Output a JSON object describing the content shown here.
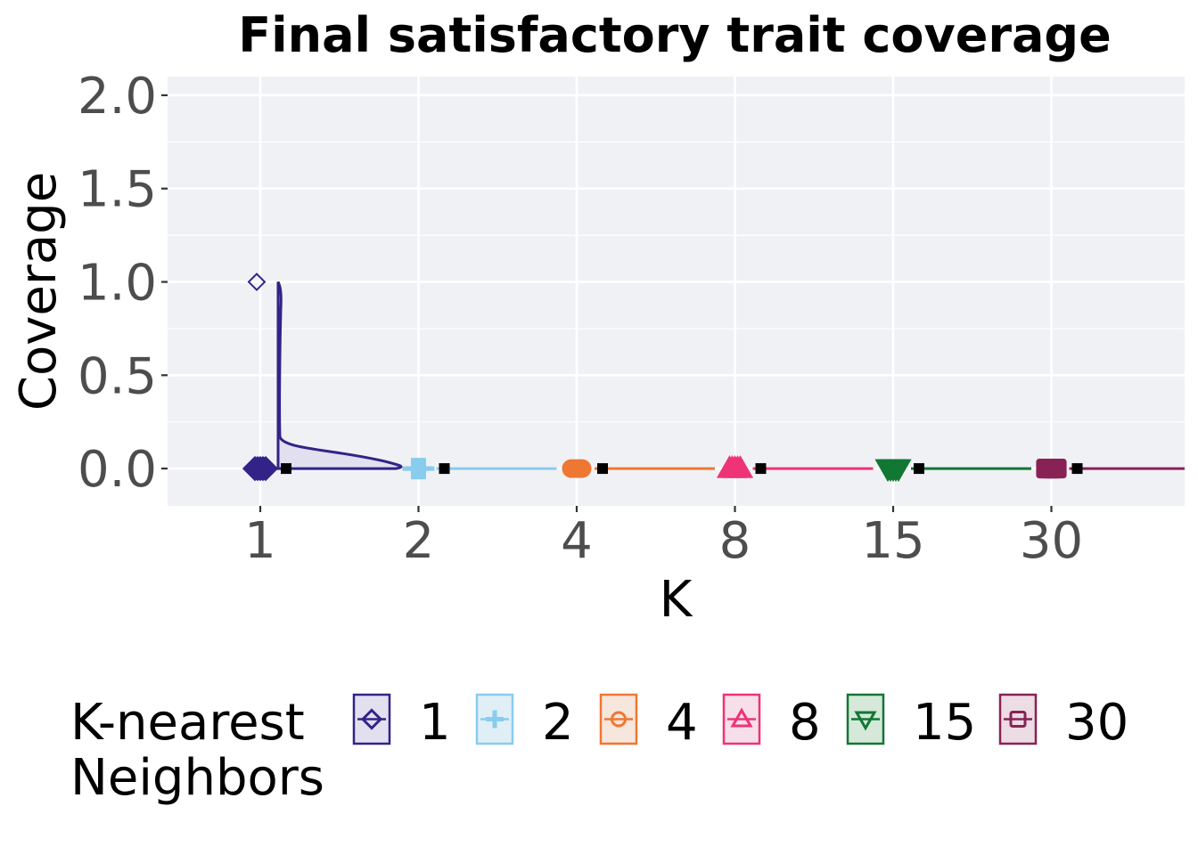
{
  "chart_data": {
    "type": "raincloud",
    "title": "Final satisfactory trait coverage",
    "xlabel": "K",
    "ylabel": "Coverage",
    "categories": [
      "1",
      "2",
      "4",
      "8",
      "15",
      "30"
    ],
    "ylim": [
      -0.2,
      2.1
    ],
    "yticks": [
      0.0,
      0.5,
      1.0,
      1.5,
      2.0
    ],
    "ytick_labels": [
      "0.0",
      "0.5",
      "1.0",
      "1.5",
      "2.0"
    ],
    "grid": true,
    "legend_position": "bottom",
    "legend_title_lines": [
      "K-nearest",
      "Neighbors"
    ],
    "series": [
      {
        "name": "1",
        "color": "#332288",
        "fill": "#e2e0ee",
        "marker": "diamond",
        "values_summary": {
          "median": 0.0,
          "max": 1.0
        },
        "outliers": [
          1.0
        ]
      },
      {
        "name": "2",
        "color": "#88CCEE",
        "fill": "#e0eef6",
        "marker": "plus",
        "values_summary": {
          "median": 0.0,
          "max": 0.0
        },
        "outliers": []
      },
      {
        "name": "4",
        "color": "#EE7733",
        "fill": "#f6e6dc",
        "marker": "circle",
        "values_summary": {
          "median": 0.0,
          "max": 0.0
        },
        "outliers": []
      },
      {
        "name": "8",
        "color": "#EE3377",
        "fill": "#f6dfe8",
        "marker": "triangle",
        "values_summary": {
          "median": 0.0,
          "max": 0.0
        },
        "outliers": []
      },
      {
        "name": "15",
        "color": "#117733",
        "fill": "#d6e8da",
        "marker": "triangle-down",
        "values_summary": {
          "median": 0.0,
          "max": 0.0
        },
        "outliers": []
      },
      {
        "name": "30",
        "color": "#882255",
        "fill": "#ecdce4",
        "marker": "square",
        "values_summary": {
          "median": 0.0,
          "max": 0.0
        },
        "outliers": []
      }
    ]
  }
}
